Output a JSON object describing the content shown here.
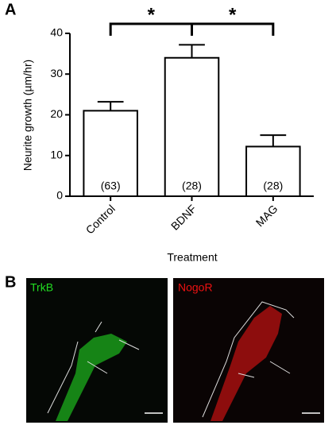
{
  "panel_labels": [
    "A",
    "B"
  ],
  "chart_data": {
    "type": "bar",
    "ylabel": "Neurite growth (µm/hr)",
    "xlabel": "Treatment",
    "categories": [
      "Control",
      "BDNF",
      "MAG"
    ],
    "values": [
      21,
      34,
      12.2
    ],
    "errors": [
      2.2,
      3.2,
      2.8
    ],
    "n_labels": [
      "(63)",
      "(28)",
      "(28)"
    ],
    "color": "#ffffff",
    "ylim": [
      0,
      40
    ],
    "yticks": [
      0,
      10,
      20,
      30,
      40
    ],
    "significance": [
      {
        "pair": [
          "Control",
          "BDNF"
        ],
        "label": "*"
      },
      {
        "pair": [
          "BDNF",
          "MAG"
        ],
        "label": "*"
      }
    ]
  },
  "images": [
    {
      "label": "TrkB",
      "color": "#22dd22"
    },
    {
      "label": "NogoR",
      "color": "#ee1111"
    }
  ]
}
